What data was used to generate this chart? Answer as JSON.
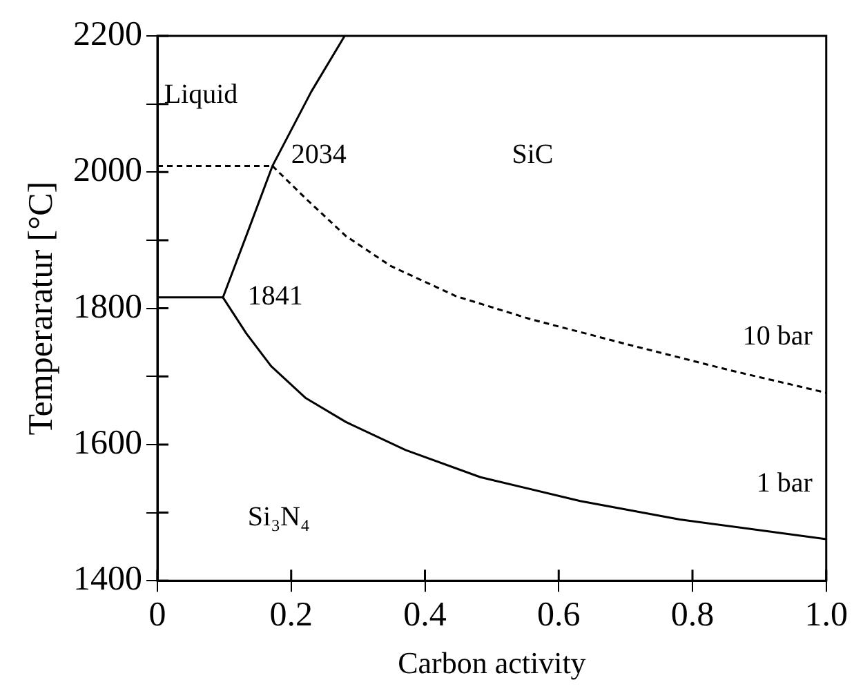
{
  "chart_data": {
    "type": "line",
    "xlabel": "Carbon activity",
    "ylabel": "Temperaratur [°C]",
    "xlim": [
      0,
      1
    ],
    "xticks": [
      0,
      0.2,
      0.4,
      0.6,
      0.8,
      {
        "value": 1,
        "label": "1.0"
      }
    ],
    "ylim": [
      1400,
      2200
    ],
    "yticks": [
      1400,
      {
        "value": 1500,
        "label": null
      },
      1600,
      {
        "value": 1700,
        "label": null
      },
      1800,
      {
        "value": 1900,
        "label": null
      },
      2000,
      {
        "value": 2100,
        "label": null
      },
      2200
    ],
    "grid": false,
    "legend": false,
    "marker": "none",
    "series": [
      {
        "color": "#000000",
        "line_style": "solid",
        "x": [
          0,
          0.098
        ],
        "values": [
          1816,
          1816
        ]
      },
      {
        "color": "#000000",
        "line_style": "solid",
        "x": [
          0.098,
          0.135,
          0.172,
          0.23,
          0.28
        ],
        "values": [
          1816,
          1912,
          2009,
          2118,
          2200
        ]
      },
      {
        "color": "#000000",
        "line_style": "dashed",
        "x": [
          0,
          0.172
        ],
        "values": [
          2009,
          2009
        ]
      },
      {
        "color": "#000000",
        "line_style": "dashed",
        "x": [
          0.172,
          0.222,
          0.282,
          0.349,
          0.446,
          0.558,
          0.707,
          0.856,
          1
        ],
        "values": [
          2009,
          1961,
          1906,
          1862,
          1818,
          1784,
          1746,
          1709,
          1676
        ]
      },
      {
        "color": "#000000",
        "line_style": "solid",
        "x": [
          0.098,
          0.133,
          0.17,
          0.222,
          0.282,
          0.371,
          0.483,
          0.632,
          0.781,
          1
        ],
        "values": [
          1816,
          1763,
          1715,
          1668,
          1633,
          1592,
          1552,
          1517,
          1490,
          1461
        ]
      }
    ],
    "annotations": [
      "Liquid",
      "2034",
      "SiC",
      "1841",
      "Si₃N₄",
      {
        "text": "10 bar",
        "x": 1,
        "y": 1676
      },
      {
        "text": "1 bar",
        "x": 1,
        "y": 1461
      }
    ]
  }
}
